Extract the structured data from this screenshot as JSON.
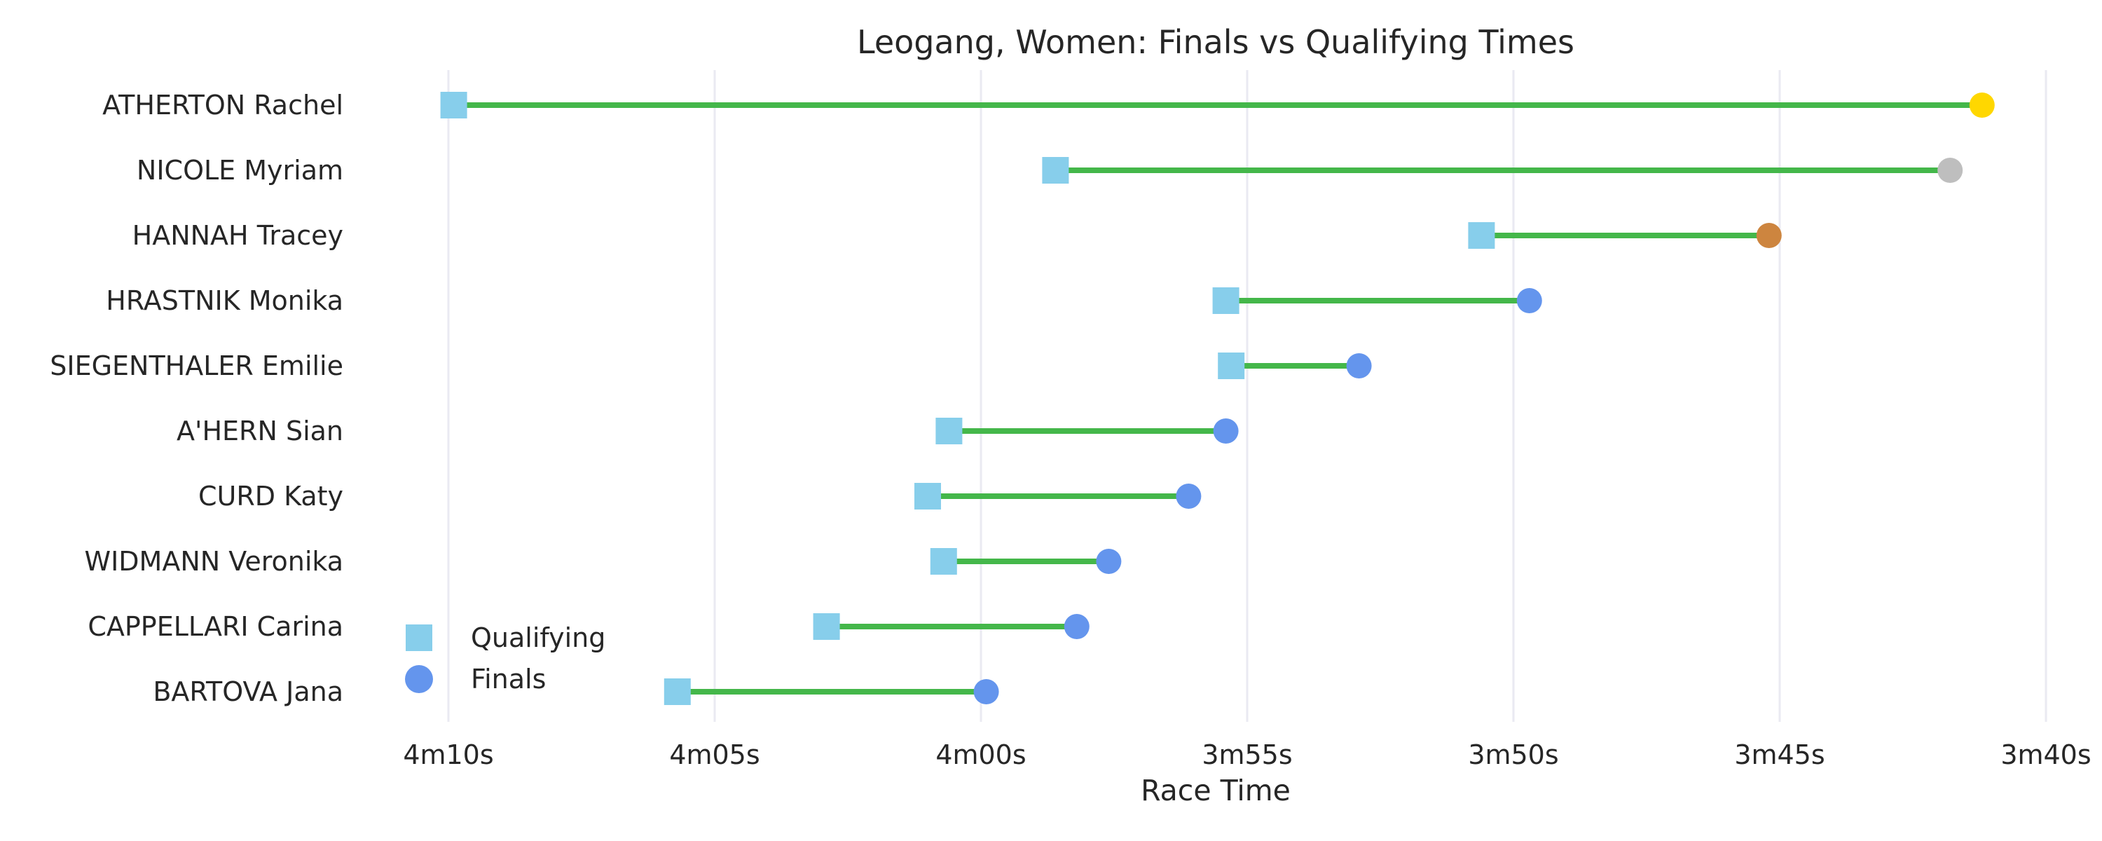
{
  "chart_data": {
    "type": "dumbbell",
    "title": "Leogang, Women: Finals vs Qualifying Times",
    "xlabel": "Race Time",
    "ylabel": "",
    "x_axis_reversed": true,
    "xlim": [
      250.5,
      219.5
    ],
    "x_ticks": [
      {
        "value": 250,
        "label": "4m10s"
      },
      {
        "value": 245,
        "label": "4m05s"
      },
      {
        "value": 240,
        "label": "4m00s"
      },
      {
        "value": 235,
        "label": "3m55s"
      },
      {
        "value": 230,
        "label": "3m50s"
      },
      {
        "value": 225,
        "label": "3m45s"
      },
      {
        "value": 220,
        "label": "3m40s"
      }
    ],
    "grid": "vertical",
    "legend": {
      "position": "bottom-left",
      "entries": [
        "Qualifying",
        "Finals"
      ]
    },
    "categories": [
      "ATHERTON Rachel",
      "NICOLE Myriam",
      "HANNAH Tracey",
      "HRASTNIK Monika",
      "SIEGENTHALER Emilie",
      "A'HERN Sian",
      "CURD Katy",
      "WIDMANN Veronika",
      "CAPPELLARI Carina",
      "BARTOVA Jana"
    ],
    "series": [
      {
        "name": "Qualifying",
        "marker": "square",
        "color": "#87CEEB",
        "values": [
          249.9,
          238.6,
          230.6,
          235.4,
          235.3,
          240.6,
          241.0,
          240.7,
          242.9,
          245.7
        ]
      },
      {
        "name": "Finals",
        "marker": "circle",
        "color": "#6495ED",
        "values": [
          221.2,
          221.8,
          225.2,
          229.7,
          232.9,
          235.4,
          236.1,
          237.6,
          238.2,
          239.9
        ]
      }
    ],
    "connector_color": "#44B74A",
    "finals_marker_colors": [
      "#FFD700",
      "#BEBEBE",
      "#CD853F",
      "#6495ED",
      "#6495ED",
      "#6495ED",
      "#6495ED",
      "#6495ED",
      "#6495ED",
      "#6495ED"
    ]
  }
}
